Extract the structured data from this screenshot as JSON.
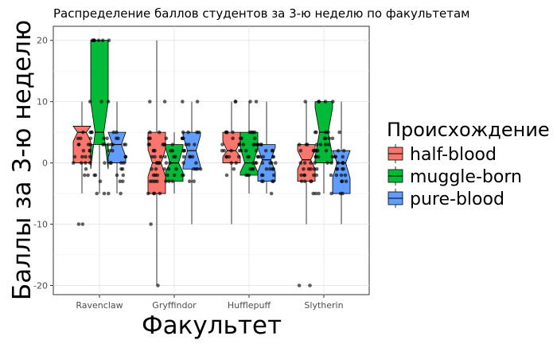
{
  "chart_data": {
    "type": "boxplot",
    "title": "Распределение баллов студентов за 3-ю неделю по факультетам",
    "xlabel": "Факультет",
    "ylabel": "Баллы за 3-ю неделю",
    "ylim": [
      -21.5,
      22.3
    ],
    "yticks": [
      -20,
      -10,
      0,
      10,
      20
    ],
    "grid": true,
    "notched": true,
    "categories": [
      "Ravenclaw",
      "Gryffindor",
      "Hufflepuff",
      "Slytherin"
    ],
    "legend": {
      "title": "Происхождение",
      "placement": "right",
      "entries": [
        "half-blood",
        "muggle-born",
        "pure-blood"
      ]
    },
    "series": [
      {
        "name": "half-blood",
        "color": "#F8766D",
        "boxes": [
          {
            "category": "Ravenclaw",
            "min": -5,
            "q1": 0,
            "median": 5,
            "q3": 6,
            "max": 10,
            "notch": [
              3.5,
              6
            ]
          },
          {
            "category": "Gryffindor",
            "min": -20,
            "q1": -5,
            "median": 0,
            "q3": 5,
            "max": 20,
            "notch": [
              -2.2,
              2.2
            ]
          },
          {
            "category": "Hufflepuff",
            "min": -10,
            "q1": 0,
            "median": 2,
            "q3": 5,
            "max": 10,
            "notch": [
              1,
              3.5
            ]
          },
          {
            "category": "Slytherin",
            "min": -10,
            "q1": -3,
            "median": 0.5,
            "q3": 3,
            "max": 10,
            "notch": [
              -1,
              2
            ]
          }
        ]
      },
      {
        "name": "muggle-born",
        "color": "#00BA38",
        "boxes": [
          {
            "category": "Ravenclaw",
            "min": -5,
            "q1": 3,
            "median": 5,
            "q3": 20,
            "max": 20,
            "notch": [
              -1,
              10
            ]
          },
          {
            "category": "Gryffindor",
            "min": -5,
            "q1": -3,
            "median": 0,
            "q3": 3,
            "max": 5,
            "notch": [
              -1.5,
              2.5
            ]
          },
          {
            "category": "Hufflepuff",
            "min": -5,
            "q1": -2,
            "median": 0,
            "q3": 5,
            "max": 10,
            "notch": [
              -1.5,
              2.5
            ]
          },
          {
            "category": "Slytherin",
            "min": -5,
            "q1": 0,
            "median": 5,
            "q3": 10,
            "max": 10,
            "notch": [
              1,
              9
            ]
          }
        ]
      },
      {
        "name": "pure-blood",
        "color": "#619CFF",
        "boxes": [
          {
            "category": "Ravenclaw",
            "min": -5,
            "q1": 0,
            "median": 3,
            "q3": 5,
            "max": 10,
            "notch": [
              1,
              5
            ]
          },
          {
            "category": "Gryffindor",
            "min": -10,
            "q1": -1,
            "median": 2,
            "q3": 5,
            "max": 10,
            "notch": [
              -0.5,
              4.5
            ]
          },
          {
            "category": "Hufflepuff",
            "min": -5,
            "q1": -3,
            "median": 0.5,
            "q3": 3,
            "max": 10,
            "notch": [
              -1.5,
              2.5
            ]
          },
          {
            "category": "Slytherin",
            "min": -10,
            "q1": -5,
            "median": 0,
            "q3": 2,
            "max": 10,
            "notch": [
              -2.5,
              2
            ]
          }
        ]
      }
    ]
  }
}
